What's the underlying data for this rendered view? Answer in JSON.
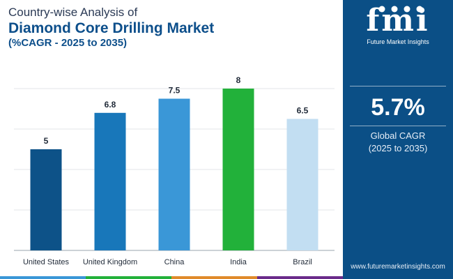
{
  "header": {
    "line1": "Country-wise Analysis of",
    "line2": "Diamond Core Drilling Market",
    "line3": "(%CAGR - 2025 to 2035)"
  },
  "chart_data": {
    "type": "bar",
    "categories": [
      "United States",
      "United Kingdom",
      "China",
      "India",
      "Brazil"
    ],
    "values": [
      5,
      6.8,
      7.5,
      8,
      6.5
    ],
    "data_labels": [
      "5",
      "6.8",
      "7.5",
      "8",
      "6.5"
    ],
    "colors": [
      "#0d5288",
      "#1877ba",
      "#3a97d7",
      "#22b13a",
      "#c2def2"
    ],
    "ylim": [
      0,
      8
    ],
    "grid": true,
    "title": "",
    "xlabel": "",
    "ylabel": ""
  },
  "side_panel": {
    "logo_text": "fmi",
    "logo_subtitle": "Future Market Insights",
    "cagr_value": "5.7%",
    "cagr_label_line1": "Global CAGR",
    "cagr_label_line2": "(2025 to 2035)",
    "website": "www.futuremarketinsights.com",
    "bg_color": "#0b4f86"
  },
  "bottom_strip_colors": [
    "#3a97d7",
    "#22b13a",
    "#e08a2a",
    "#6a2b8a"
  ]
}
